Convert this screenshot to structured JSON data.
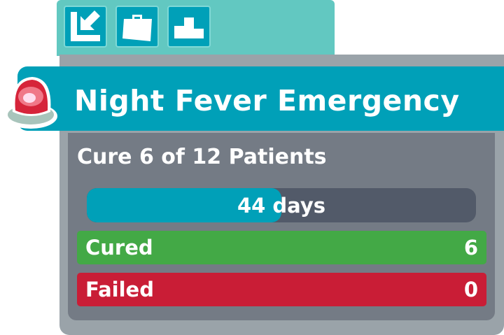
{
  "tabs": [
    {
      "icon": "exit-arrow-icon"
    },
    {
      "icon": "briefcase-icon"
    },
    {
      "icon": "podium-icon"
    }
  ],
  "title": "Night Fever Emergency",
  "goal": "Cure 6 of 12 Patients",
  "timer": {
    "label": "44 days",
    "progress": 0.5
  },
  "cured": {
    "label": "Cured",
    "value": "6"
  },
  "failed": {
    "label": "Failed",
    "value": "0"
  },
  "colors": {
    "teal": "#00a0b8",
    "tab": "#62c8c1",
    "cured": "#43a946",
    "failed": "#c91d36"
  }
}
